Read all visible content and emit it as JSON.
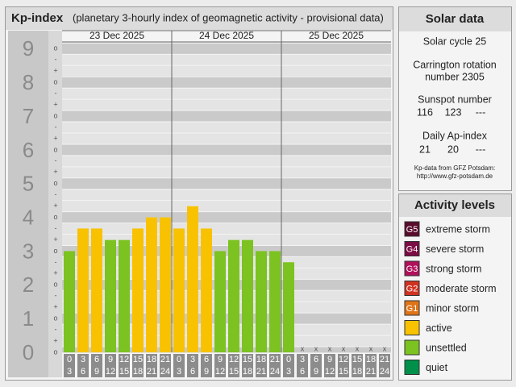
{
  "title": "Kp-index",
  "subtitle": "(planetary 3-hourly index of geomagnetic activity - provisional data)",
  "chart_data": {
    "type": "bar",
    "days": [
      "23 Dec 2025",
      "24 Dec 2025",
      "25 Dec 2025"
    ],
    "slots": [
      [
        0,
        3
      ],
      [
        3,
        6
      ],
      [
        6,
        9
      ],
      [
        9,
        12
      ],
      [
        12,
        15
      ],
      [
        15,
        18
      ],
      [
        18,
        21
      ],
      [
        21,
        24
      ]
    ],
    "values": [
      3,
      3.67,
      3.67,
      3.33,
      3.33,
      3.67,
      4,
      4,
      3.67,
      4.33,
      3.67,
      3,
      3.33,
      3.33,
      3,
      3,
      2.67,
      null,
      null,
      null,
      null,
      null,
      null,
      null
    ],
    "colors": [
      "#7cc220",
      "#f8c200",
      "#f8c200",
      "#7cc220",
      "#7cc220",
      "#f8c200",
      "#f8c200",
      "#f8c200",
      "#f8c200",
      "#f8c200",
      "#f8c200",
      "#7cc220",
      "#7cc220",
      "#7cc220",
      "#7cc220",
      "#7cc220",
      "#7cc220",
      null,
      null,
      null,
      null,
      null,
      null,
      null
    ],
    "ylim": [
      0,
      9.2
    ],
    "yticks": [
      0,
      1,
      2,
      3,
      4,
      5,
      6,
      7,
      8,
      9
    ],
    "minor_labels": [
      "-",
      "o",
      "+"
    ],
    "missing_label": "x"
  },
  "solar": {
    "title": "Solar data",
    "cycle": "Solar cycle 25",
    "carrington": [
      "Carrington rotation",
      "number 2305"
    ],
    "sunspot_label": "Sunspot number",
    "sunspot": [
      "116",
      "123",
      "---"
    ],
    "ap_label": "Daily Ap-index",
    "ap": [
      "21",
      "20",
      "---"
    ],
    "source": [
      "Kp-data from GFZ Potsdam:",
      "http://www.gfz-potsdam.de"
    ]
  },
  "levels": {
    "title": "Activity levels",
    "items": [
      {
        "code": "G5",
        "label": "extreme storm",
        "color": "#5a0c2c"
      },
      {
        "code": "G4",
        "label": "severe storm",
        "color": "#7c0c44"
      },
      {
        "code": "G3",
        "label": "strong storm",
        "color": "#b0105c"
      },
      {
        "code": "G2",
        "label": "moderate storm",
        "color": "#d03222"
      },
      {
        "code": "G1",
        "label": "minor storm",
        "color": "#e07418"
      },
      {
        "label": "active",
        "color": "#f8c200"
      },
      {
        "label": "unsettled",
        "color": "#7cc220"
      },
      {
        "label": "quiet",
        "color": "#00904a"
      }
    ]
  }
}
